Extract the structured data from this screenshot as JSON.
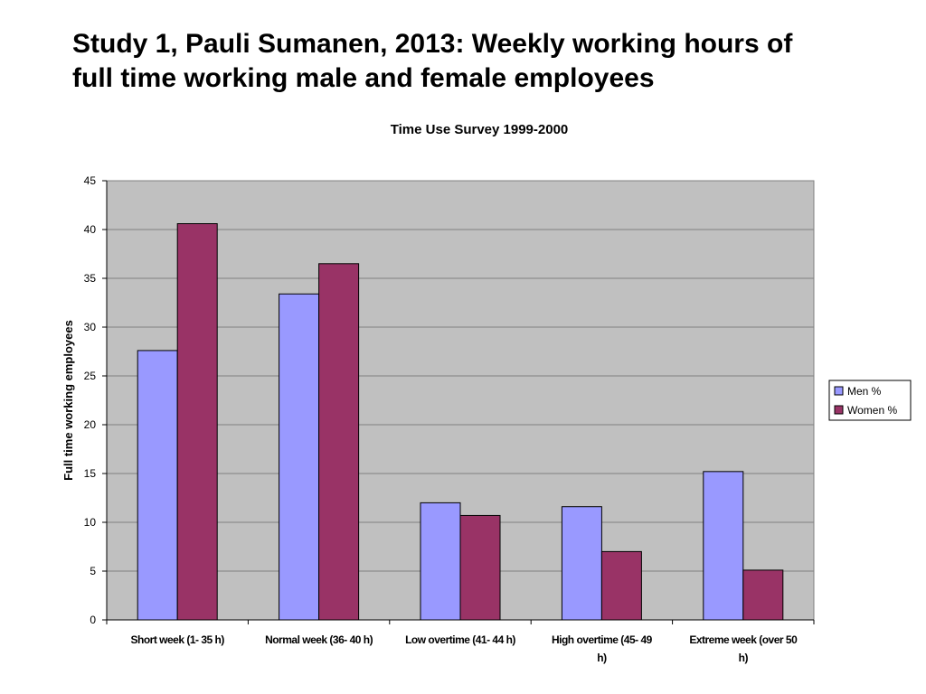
{
  "slide": {
    "title_lines": [
      "Study 1, Pauli Sumanen, 2013: Weekly working hours of",
      "full time working male and female employees"
    ]
  },
  "chart_data": {
    "type": "bar",
    "title": "Time Use Survey 1999-2000",
    "xlabel": "",
    "ylabel": "Full time working employees",
    "ylim": [
      0,
      45
    ],
    "yticks": [
      0,
      5,
      10,
      15,
      20,
      25,
      30,
      35,
      40,
      45
    ],
    "categories": [
      [
        "Short week (1- 35 h)"
      ],
      [
        "Normal week (36- 40 h)"
      ],
      [
        "Low overtime (41- 44 h)"
      ],
      [
        "High overtime (45- 49",
        "h)"
      ],
      [
        "Extreme week (over 50",
        "h)"
      ]
    ],
    "series": [
      {
        "name": "Men %",
        "color": "#9999ff",
        "values": [
          27.6,
          33.4,
          12.0,
          11.6,
          15.2
        ]
      },
      {
        "name": "Women %",
        "color": "#993366",
        "values": [
          40.6,
          36.5,
          10.7,
          7.0,
          5.1
        ]
      }
    ],
    "grid": true,
    "plot_background": "#c0c0c0",
    "legend_position": "right"
  }
}
